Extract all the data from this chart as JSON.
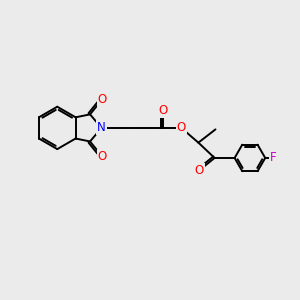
{
  "bg_color": "#ebebeb",
  "bond_color": "#000000",
  "bond_width": 1.4,
  "atom_colors": {
    "O": "#ff0000",
    "N": "#0000ff",
    "F": "#cc00cc",
    "C": "#000000"
  },
  "font_size_atom": 8.5
}
